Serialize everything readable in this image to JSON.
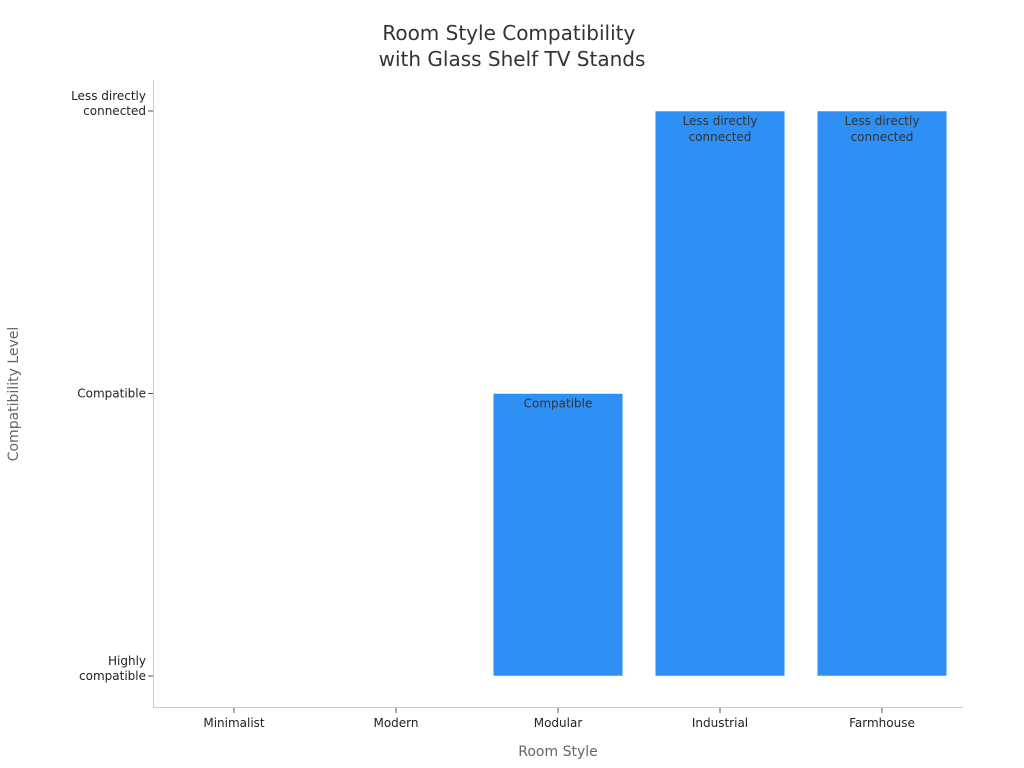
{
  "chart_data": {
    "type": "bar",
    "title": [
      "Room Style Compatibility",
      "with Glass Shelf TV Stands"
    ],
    "xlabel": "Room Style",
    "ylabel": "Compatibility Level",
    "categories": [
      "Minimalist",
      "Modern",
      "Modular",
      "Industrial",
      "Farmhouse"
    ],
    "y_levels": [
      "Highly compatible",
      "Compatible",
      "Less directly connected"
    ],
    "values": [
      0,
      0,
      1,
      2,
      2
    ],
    "value_labels": [
      "Highly compatible",
      "Highly compatible",
      "Compatible",
      "Less directly connected",
      "Less directly connected"
    ],
    "ylim": [
      -0.1125,
      2.1125
    ],
    "bar_color": "#2e90f5",
    "grid": false,
    "legend": "none"
  }
}
